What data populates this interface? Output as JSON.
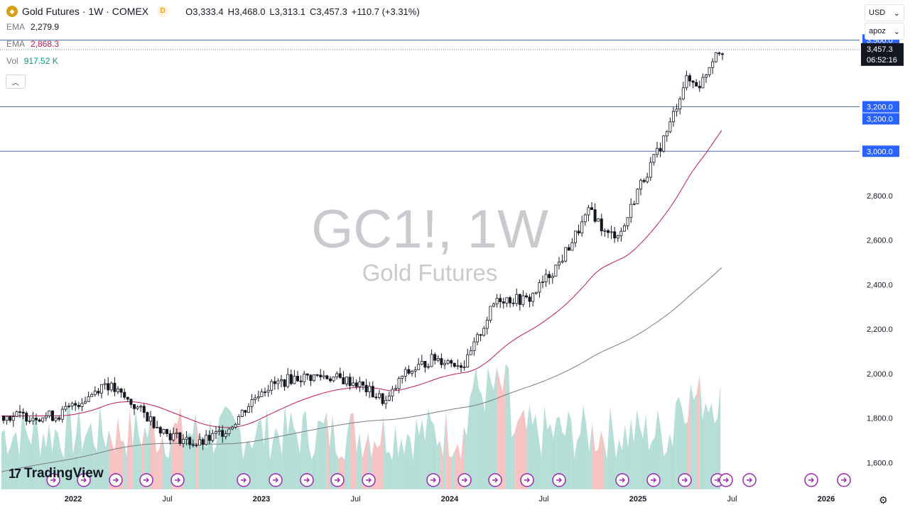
{
  "legend": {
    "title": "Gold Futures · 1W · COMEX",
    "badge": "D",
    "open_label": "O",
    "open": "3,333.4",
    "high_label": "H",
    "high": "3,468.0",
    "low_label": "L",
    "low": "3,313.1",
    "close_label": "C",
    "close": "3,457.3",
    "change": "+110.7 (+3.31%)",
    "ema1_name": "EMA",
    "ema1_value": "2,279.9",
    "ema2_name": "EMA",
    "ema2_value": "2,868.3",
    "vol_name": "Vol",
    "vol_value": "917.52 K"
  },
  "controls": {
    "currency": "USD",
    "scale_mode": "apoz"
  },
  "watermark": {
    "line1": "GC1!, 1W",
    "line2": "Gold Futures"
  },
  "branding": {
    "logo_text": "TradingView",
    "logo_mark": "17"
  },
  "colors": {
    "up": "#131722",
    "down": "#131722",
    "ema_fast": "#c2185b",
    "ema_slow": "#787b86",
    "vol_up": "#a8d8d0",
    "vol_down": "#f5b8b8",
    "hline": "#2962ff",
    "label_bg": "#2962ff",
    "price_label_bg": "#131722",
    "event_icon": "#9c27b0"
  },
  "chart_data": {
    "type": "candlestick",
    "title": "Gold Futures · 1W · COMEX",
    "timeframe": "1W",
    "x_tick_labels": [
      "2022",
      "Jul",
      "2023",
      "Jul",
      "2024",
      "Jul",
      "2025",
      "Jul",
      "2026"
    ],
    "y_tick_labels": [
      "1,600.0",
      "1,800.0",
      "2,000.0",
      "2,200.0",
      "2,400.0",
      "2,600.0",
      "2,800.0"
    ],
    "ylim": [
      1480,
      3680
    ],
    "horizontal_lines": [
      {
        "value": 3500,
        "label": "3,500.0"
      },
      {
        "value": 3200,
        "label": "3,200.0"
      },
      {
        "value": 3000,
        "label": "3,000.0"
      }
    ],
    "extra_label": "3,200.0",
    "current_price_label": "3,457.3",
    "countdown_label": "06:52:16",
    "ema_fast_last": 2868.3,
    "ema_slow_last": 2279.9,
    "volume_last": "917.52 K",
    "series": [
      {
        "name": "Close",
        "points": [
          [
            "2021-12",
            1810
          ],
          [
            "2022-02",
            1900
          ],
          [
            "2022-03",
            1960
          ],
          [
            "2022-05",
            1850
          ],
          [
            "2022-07",
            1730
          ],
          [
            "2022-09",
            1680
          ],
          [
            "2022-11",
            1760
          ],
          [
            "2023-01",
            1930
          ],
          [
            "2023-03",
            1980
          ],
          [
            "2023-05",
            1990
          ],
          [
            "2023-07",
            1960
          ],
          [
            "2023-09",
            1870
          ],
          [
            "2023-10",
            1990
          ],
          [
            "2023-12",
            2070
          ],
          [
            "2024-02",
            2040
          ],
          [
            "2024-04",
            2340
          ],
          [
            "2024-06",
            2330
          ],
          [
            "2024-08",
            2500
          ],
          [
            "2024-10",
            2740
          ],
          [
            "2024-11",
            2620
          ],
          [
            "2024-12",
            2640
          ],
          [
            "2025-01",
            2830
          ],
          [
            "2025-02",
            2960
          ],
          [
            "2025-03",
            3110
          ],
          [
            "2025-04",
            3320
          ],
          [
            "2025-05",
            3300
          ],
          [
            "2025-06",
            3457.3
          ]
        ]
      }
    ],
    "event_markers_count": 23
  }
}
